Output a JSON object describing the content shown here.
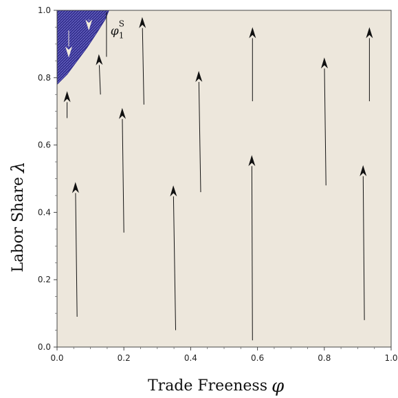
{
  "chart_data": {
    "type": "vector-field",
    "xlabel": "Trade Freeness",
    "xlabel_symbol": "φ",
    "ylabel": "Labor Share",
    "ylabel_symbol": "λ",
    "xlim": [
      0,
      1
    ],
    "ylim": [
      0,
      1
    ],
    "xticks": [
      "0.0",
      "0.2",
      "0.4",
      "0.6",
      "0.8",
      "1.0"
    ],
    "yticks": [
      "0.0",
      "0.2",
      "0.4",
      "0.6",
      "0.8",
      "1.0"
    ],
    "grid": false,
    "colors": {
      "background": "#ede7dc",
      "region_fill": "#34308e",
      "region_hatch": "#7a76d6",
      "arrow": "#111111",
      "arrow_in_region": "#f3eddc"
    },
    "region": {
      "label": "φ",
      "label_sup": "S",
      "label_sub": "1",
      "boundary": [
        [
          0.0,
          0.78
        ],
        [
          0.03,
          0.81
        ],
        [
          0.06,
          0.85
        ],
        [
          0.09,
          0.89
        ],
        [
          0.12,
          0.935
        ],
        [
          0.145,
          0.975
        ],
        [
          0.155,
          1.0
        ]
      ],
      "label_pos": [
        0.16,
        0.94
      ],
      "label_line": [
        [
          0.148,
          0.862
        ],
        [
          0.148,
          0.995
        ]
      ]
    },
    "arrows": [
      {
        "x0": 0.06,
        "y0": 0.09,
        "x1": 0.055,
        "y1": 0.49
      },
      {
        "x0": 0.03,
        "y0": 0.68,
        "x1": 0.03,
        "y1": 0.76
      },
      {
        "x0": 0.13,
        "y0": 0.75,
        "x1": 0.125,
        "y1": 0.87
      },
      {
        "x0": 0.2,
        "y0": 0.34,
        "x1": 0.195,
        "y1": 0.71
      },
      {
        "x0": 0.26,
        "y0": 0.72,
        "x1": 0.255,
        "y1": 0.98
      },
      {
        "x0": 0.355,
        "y0": 0.05,
        "x1": 0.348,
        "y1": 0.48
      },
      {
        "x0": 0.43,
        "y0": 0.46,
        "x1": 0.424,
        "y1": 0.82
      },
      {
        "x0": 0.585,
        "y0": 0.02,
        "x1": 0.583,
        "y1": 0.57
      },
      {
        "x0": 0.585,
        "y0": 0.73,
        "x1": 0.585,
        "y1": 0.95
      },
      {
        "x0": 0.805,
        "y0": 0.48,
        "x1": 0.8,
        "y1": 0.86
      },
      {
        "x0": 0.92,
        "y0": 0.08,
        "x1": 0.916,
        "y1": 0.54
      },
      {
        "x0": 0.935,
        "y0": 0.73,
        "x1": 0.935,
        "y1": 0.95
      },
      {
        "x0": 0.035,
        "y0": 0.94,
        "x1": 0.035,
        "y1": 0.86,
        "inside_region": true
      },
      {
        "x0": 0.095,
        "y0": 0.97,
        "x1": 0.095,
        "y1": 0.94,
        "inside_region": true
      }
    ]
  }
}
